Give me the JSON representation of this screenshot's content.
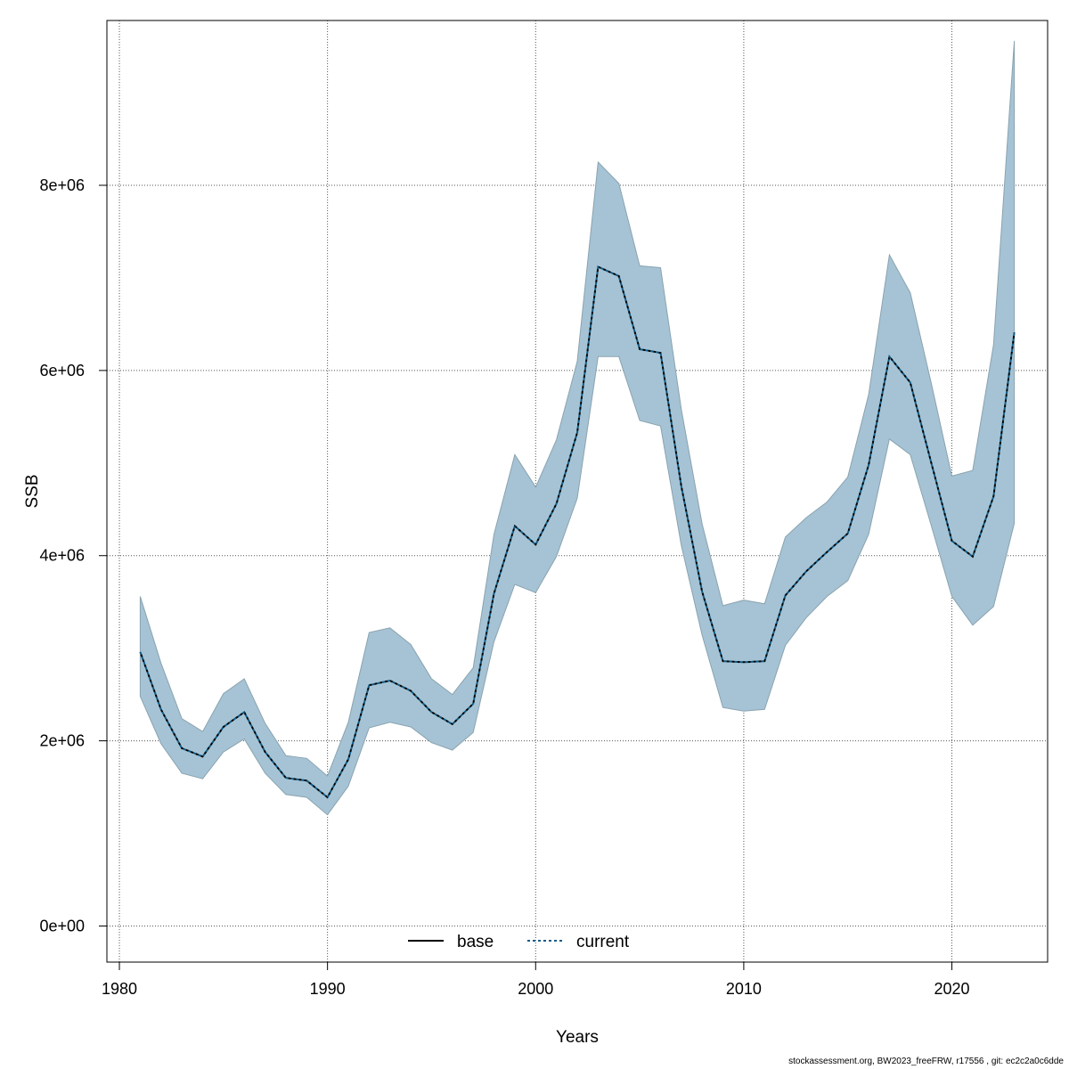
{
  "chart_data": {
    "type": "area",
    "xlabel": "Years",
    "ylabel": "SSB",
    "xlim": [
      1979.4,
      2024.6
    ],
    "ylim": [
      -390000,
      9780000
    ],
    "x_ticks": [
      1980,
      1990,
      2000,
      2010,
      2020
    ],
    "y_ticks": [
      {
        "value": 0,
        "label": "0e+00"
      },
      {
        "value": 2000000,
        "label": "2e+06"
      },
      {
        "value": 4000000,
        "label": "4e+06"
      },
      {
        "value": 6000000,
        "label": "6e+06"
      },
      {
        "value": 8000000,
        "label": "8e+06"
      }
    ],
    "grid": true,
    "legend_position": "bottom-center",
    "x": [
      1981,
      1982,
      1983,
      1984,
      1985,
      1986,
      1987,
      1988,
      1989,
      1990,
      1991,
      1992,
      1993,
      1994,
      1995,
      1996,
      1997,
      1998,
      1999,
      2000,
      2001,
      2002,
      2003,
      2004,
      2005,
      2006,
      2007,
      2008,
      2009,
      2010,
      2011,
      2012,
      2013,
      2014,
      2015,
      2016,
      2017,
      2018,
      2019,
      2020,
      2021,
      2022,
      2023
    ],
    "series": [
      {
        "name": "base",
        "color": "#000000",
        "dash": "solid",
        "values": [
          2960000,
          2340000,
          1920000,
          1830000,
          2150000,
          2310000,
          1880000,
          1600000,
          1570000,
          1390000,
          1800000,
          2600000,
          2650000,
          2540000,
          2310000,
          2180000,
          2400000,
          3590000,
          4320000,
          4120000,
          4560000,
          5330000,
          7120000,
          7020000,
          6230000,
          6190000,
          4750000,
          3610000,
          2860000,
          2850000,
          2860000,
          3570000,
          3830000,
          4040000,
          4240000,
          4980000,
          6150000,
          5870000,
          5010000,
          4160000,
          3990000,
          4640000,
          6410000
        ]
      },
      {
        "name": "current",
        "color": "#0e5c8a",
        "dash": "dotted",
        "values": [
          2960000,
          2340000,
          1920000,
          1830000,
          2150000,
          2310000,
          1880000,
          1600000,
          1570000,
          1390000,
          1800000,
          2600000,
          2650000,
          2540000,
          2310000,
          2180000,
          2400000,
          3590000,
          4320000,
          4120000,
          4560000,
          5330000,
          7120000,
          7020000,
          6230000,
          6190000,
          4750000,
          3610000,
          2860000,
          2850000,
          2860000,
          3570000,
          3830000,
          4040000,
          4240000,
          4980000,
          6150000,
          5870000,
          5010000,
          4160000,
          3990000,
          4640000,
          6410000
        ]
      }
    ],
    "band": {
      "fill": "#a5c3d4",
      "edge": "#8aa3b0",
      "upper": [
        3560000,
        2840000,
        2240000,
        2100000,
        2510000,
        2670000,
        2190000,
        1840000,
        1810000,
        1620000,
        2200000,
        3170000,
        3220000,
        3040000,
        2670000,
        2500000,
        2790000,
        4230000,
        5090000,
        4740000,
        5250000,
        6100000,
        8250000,
        8020000,
        7130000,
        7110000,
        5580000,
        4340000,
        3460000,
        3520000,
        3480000,
        4200000,
        4410000,
        4580000,
        4850000,
        5740000,
        7250000,
        6840000,
        5870000,
        4860000,
        4920000,
        6280000,
        9560000
      ],
      "lower": [
        2480000,
        1970000,
        1650000,
        1590000,
        1880000,
        2020000,
        1650000,
        1420000,
        1390000,
        1200000,
        1510000,
        2140000,
        2200000,
        2150000,
        1980000,
        1900000,
        2090000,
        3070000,
        3690000,
        3600000,
        3990000,
        4620000,
        6150000,
        6150000,
        5460000,
        5400000,
        4110000,
        3140000,
        2360000,
        2320000,
        2340000,
        3030000,
        3330000,
        3560000,
        3730000,
        4230000,
        5260000,
        5090000,
        4330000,
        3560000,
        3250000,
        3450000,
        4350000
      ]
    }
  },
  "footer_text": "stockassessment.org, BW2023_freeFRW, r17556 , git: ec2c2a0c6dde"
}
